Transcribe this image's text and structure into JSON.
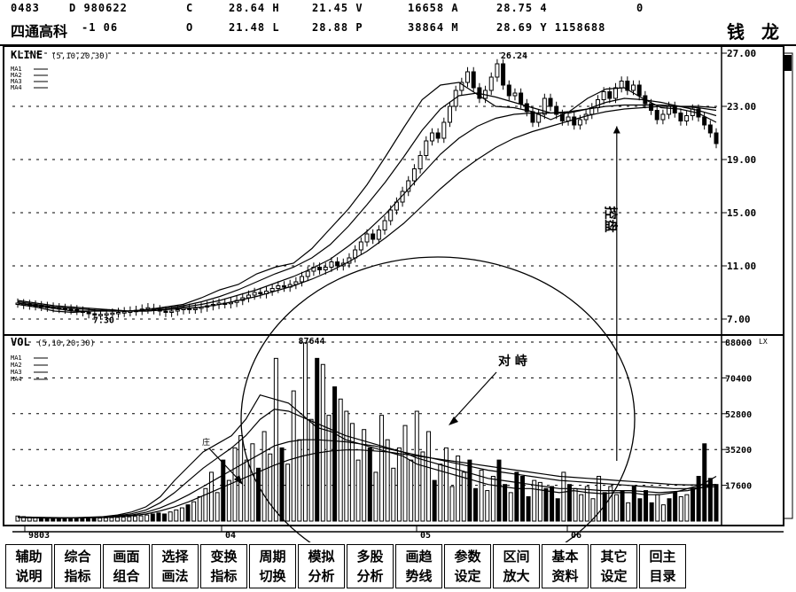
{
  "header": {
    "code": "0483",
    "name": "四通高科",
    "row1": [
      {
        "text": "D 980622",
        "x": 78
      },
      {
        "text": "C",
        "x": 210
      },
      {
        "text": "28.64 H",
        "x": 258
      },
      {
        "text": "21.45 V",
        "x": 352
      },
      {
        "text": "16658 A",
        "x": 460
      },
      {
        "text": "28.75 4",
        "x": 560
      },
      {
        "text": "0",
        "x": 718
      }
    ],
    "row2": [
      {
        "text": "-1 06",
        "x": 92
      },
      {
        "text": "O",
        "x": 210
      },
      {
        "text": "21.48 L",
        "x": 258
      },
      {
        "text": "28.88 P",
        "x": 352
      },
      {
        "text": "38864 M",
        "x": 460
      },
      {
        "text": "28.69 Y 1158688",
        "x": 560
      }
    ],
    "brand": "钱 龙"
  },
  "chart_data": [
    {
      "type": "candlestick",
      "title": "KLINE",
      "params": "(5,10,20,30)",
      "legend": [
        "MA1",
        "MA2",
        "MA3",
        "MA4"
      ],
      "ylim": [
        7.0,
        27.0
      ],
      "y_ticks": [
        "27.00",
        "23.00",
        "19.00",
        "15.00",
        "11.00",
        "7.00"
      ],
      "y_tick_values": [
        27,
        23,
        19,
        15,
        11,
        7
      ],
      "x_tick_labels": [
        "9803",
        "04",
        "05",
        "06"
      ],
      "annotations": [
        "26.24",
        "7.30",
        "控盘"
      ],
      "candles": [
        [
          8.2,
          8.2
        ],
        [
          8.1,
          8.15
        ],
        [
          8.05,
          8.1
        ],
        [
          8.0,
          8.05
        ],
        [
          8.0,
          7.95
        ],
        [
          7.95,
          7.9
        ],
        [
          7.9,
          7.85
        ],
        [
          7.85,
          7.8
        ],
        [
          7.8,
          7.75
        ],
        [
          7.75,
          7.7
        ],
        [
          7.7,
          7.65
        ],
        [
          7.6,
          7.55
        ],
        [
          7.5,
          7.4
        ],
        [
          7.4,
          7.3
        ],
        [
          7.3,
          7.35
        ],
        [
          7.35,
          7.4
        ],
        [
          7.4,
          7.45
        ],
        [
          7.45,
          7.5
        ],
        [
          7.5,
          7.55
        ],
        [
          7.55,
          7.6
        ],
        [
          7.6,
          7.65
        ],
        [
          7.65,
          7.75
        ],
        [
          7.75,
          7.85
        ],
        [
          7.8,
          7.7
        ],
        [
          7.7,
          7.6
        ],
        [
          7.6,
          7.5
        ],
        [
          7.5,
          7.6
        ],
        [
          7.6,
          7.7
        ],
        [
          7.7,
          7.8
        ],
        [
          7.8,
          7.75
        ],
        [
          7.75,
          7.8
        ],
        [
          7.8,
          7.9
        ],
        [
          7.9,
          8.0
        ],
        [
          8.0,
          8.1
        ],
        [
          8.1,
          8.2
        ],
        [
          8.2,
          8.15
        ],
        [
          8.15,
          8.25
        ],
        [
          8.25,
          8.4
        ],
        [
          8.4,
          8.6
        ],
        [
          8.6,
          8.8
        ],
        [
          8.8,
          9.0
        ],
        [
          9.0,
          8.9
        ],
        [
          8.9,
          9.1
        ],
        [
          9.1,
          9.3
        ],
        [
          9.3,
          9.5
        ],
        [
          9.5,
          9.4
        ],
        [
          9.4,
          9.6
        ],
        [
          9.6,
          9.8
        ],
        [
          9.8,
          10.2
        ],
        [
          10.2,
          10.6
        ],
        [
          10.6,
          10.9
        ],
        [
          10.9,
          10.7
        ],
        [
          10.7,
          10.9
        ],
        [
          10.9,
          11.3
        ],
        [
          11.3,
          11.0
        ],
        [
          11.0,
          11.2
        ],
        [
          11.2,
          11.6
        ],
        [
          11.6,
          12.2
        ],
        [
          12.2,
          12.8
        ],
        [
          12.8,
          13.4
        ],
        [
          13.4,
          13.0
        ],
        [
          13.0,
          13.7
        ],
        [
          13.7,
          14.4
        ],
        [
          14.4,
          15.2
        ],
        [
          15.2,
          15.8
        ],
        [
          15.8,
          16.6
        ],
        [
          16.6,
          17.4
        ],
        [
          17.4,
          18.3
        ],
        [
          18.3,
          19.3
        ],
        [
          19.3,
          20.4
        ],
        [
          20.4,
          21.0
        ],
        [
          21.0,
          20.6
        ],
        [
          20.6,
          21.8
        ],
        [
          21.8,
          23.0
        ],
        [
          23.0,
          24.2
        ],
        [
          24.2,
          24.8
        ],
        [
          24.8,
          25.6
        ],
        [
          25.6,
          24.4
        ],
        [
          24.4,
          23.6
        ],
        [
          23.6,
          24.2
        ],
        [
          24.2,
          25.2
        ],
        [
          25.2,
          26.2
        ],
        [
          26.2,
          24.6
        ],
        [
          24.6,
          23.8
        ],
        [
          23.8,
          24.0
        ],
        [
          24.0,
          23.2
        ],
        [
          23.2,
          22.6
        ],
        [
          22.6,
          21.8
        ],
        [
          21.8,
          22.4
        ],
        [
          22.4,
          23.6
        ],
        [
          23.6,
          23.0
        ],
        [
          23.0,
          22.4
        ],
        [
          22.4,
          21.9
        ],
        [
          21.9,
          22.2
        ],
        [
          22.2,
          21.6
        ],
        [
          21.6,
          22.0
        ],
        [
          22.0,
          22.4
        ],
        [
          22.4,
          22.9
        ],
        [
          22.9,
          23.5
        ],
        [
          23.5,
          24.1
        ],
        [
          24.1,
          23.6
        ],
        [
          23.6,
          24.4
        ],
        [
          24.4,
          24.9
        ],
        [
          24.9,
          24.2
        ],
        [
          24.2,
          24.6
        ],
        [
          24.6,
          23.8
        ],
        [
          23.8,
          23.2
        ],
        [
          23.2,
          22.7
        ],
        [
          22.7,
          22.0
        ],
        [
          22.0,
          22.4
        ],
        [
          22.4,
          23.0
        ],
        [
          23.0,
          22.5
        ],
        [
          22.5,
          21.9
        ],
        [
          21.9,
          22.3
        ],
        [
          22.3,
          22.8
        ],
        [
          22.8,
          22.2
        ],
        [
          22.2,
          21.6
        ],
        [
          21.6,
          21.0
        ],
        [
          21.0,
          20.2
        ]
      ],
      "ma_series": [
        {
          "name": "MA1",
          "values": [
            8.1,
            7.9,
            7.6,
            7.5,
            7.6,
            7.7,
            7.6,
            7.7,
            7.9,
            8.1,
            8.6,
            9.2,
            9.6,
            10.4,
            10.9,
            11.2,
            12.3,
            13.8,
            15.3,
            17.1,
            19.2,
            21.4,
            23.5,
            24.6,
            24.8,
            23.9,
            23.0,
            22.9,
            22.6,
            22.0,
            22.6,
            23.6,
            24.3,
            24.4,
            23.6,
            22.9,
            22.8,
            22.5,
            21.8
          ]
        },
        {
          "name": "MA2",
          "values": [
            8.2,
            8.0,
            7.8,
            7.6,
            7.6,
            7.6,
            7.6,
            7.7,
            7.8,
            8.0,
            8.3,
            8.7,
            9.2,
            9.8,
            10.4,
            10.9,
            11.6,
            12.6,
            14.0,
            15.6,
            17.3,
            19.2,
            21.2,
            22.8,
            23.8,
            24.0,
            23.7,
            23.3,
            22.9,
            22.5,
            22.5,
            22.8,
            23.3,
            23.6,
            23.5,
            23.3,
            23.0,
            22.7,
            22.3
          ]
        },
        {
          "name": "MA3",
          "values": [
            8.3,
            8.1,
            7.9,
            7.8,
            7.7,
            7.6,
            7.6,
            7.6,
            7.7,
            7.9,
            8.1,
            8.4,
            8.8,
            9.2,
            9.7,
            10.2,
            10.8,
            11.5,
            12.5,
            13.6,
            14.9,
            16.4,
            17.9,
            19.4,
            20.6,
            21.5,
            22.1,
            22.4,
            22.5,
            22.5,
            22.6,
            22.8,
            23.0,
            23.1,
            23.1,
            23.1,
            23.0,
            22.9,
            22.7
          ]
        },
        {
          "name": "MA4",
          "values": [
            8.4,
            8.2,
            8.0,
            7.9,
            7.8,
            7.7,
            7.6,
            7.6,
            7.7,
            7.8,
            7.9,
            8.1,
            8.4,
            8.7,
            9.1,
            9.5,
            10.0,
            10.6,
            11.3,
            12.1,
            13.1,
            14.2,
            15.5,
            16.8,
            18.0,
            19.0,
            19.9,
            20.6,
            21.1,
            21.5,
            21.9,
            22.3,
            22.6,
            22.8,
            22.9,
            23.0,
            23.0,
            23.0,
            22.9
          ]
        }
      ]
    },
    {
      "type": "bar",
      "title": "VOL",
      "params": "(5,10,20,30)",
      "legend": [
        "MA1",
        "MA2",
        "MA3",
        "MA4"
      ],
      "ylim": [
        0,
        88000
      ],
      "y_ticks": [
        "88000",
        "70400",
        "52800",
        "35200",
        "17600"
      ],
      "y_tick_values": [
        88000,
        70400,
        52800,
        35200,
        17600
      ],
      "unit_label": "LX",
      "annotations": [
        "87644",
        "对 峙",
        "庄"
      ],
      "values": [
        2500,
        2200,
        2000,
        1800,
        1700,
        1700,
        1600,
        1500,
        1500,
        1400,
        1400,
        1300,
        1300,
        1400,
        1500,
        1600,
        1700,
        1800,
        1900,
        2100,
        2300,
        2600,
        3000,
        3500,
        4000,
        3500,
        4500,
        5500,
        6500,
        8000,
        9500,
        12000,
        16000,
        24000,
        14000,
        30000,
        20000,
        36000,
        42000,
        30000,
        38000,
        26000,
        44000,
        33000,
        80000,
        36000,
        28000,
        64000,
        40000,
        87644,
        50000,
        80000,
        77000,
        52000,
        66000,
        60000,
        54000,
        48000,
        30000,
        45000,
        36000,
        24000,
        52000,
        40000,
        26000,
        36000,
        47000,
        30000,
        54000,
        34000,
        44000,
        20000,
        28000,
        36000,
        17000,
        32000,
        24000,
        30000,
        16000,
        25000,
        15000,
        22000,
        30000,
        18000,
        14000,
        24000,
        22000,
        12000,
        20000,
        19000,
        16000,
        17000,
        11000,
        24000,
        18000,
        16000,
        13000,
        17000,
        11000,
        22000,
        14000,
        17000,
        13000,
        15000,
        9000,
        17000,
        11000,
        15000,
        9000,
        13000,
        8000,
        11000,
        14000,
        12000,
        13000,
        16000,
        22000,
        38000,
        21000,
        18000
      ],
      "ma_series": [
        {
          "name": "MA1",
          "values": [
            1800,
            1600,
            1500,
            1500,
            1700,
            1900,
            2200,
            3000,
            4500,
            7000,
            12000,
            20000,
            27000,
            34000,
            38000,
            42000,
            50000,
            62000,
            60000,
            58000,
            52000,
            46000,
            44000,
            40000,
            38000,
            36000,
            34000,
            32000,
            28000,
            26000,
            24000,
            22000,
            20000,
            18000,
            17000,
            16000,
            16000,
            15000,
            14000,
            15000,
            14000,
            13500,
            14000,
            14000,
            13000,
            13000,
            14000,
            16000,
            18000,
            22000
          ]
        },
        {
          "name": "MA2",
          "values": [
            1900,
            1700,
            1600,
            1500,
            1600,
            1800,
            2000,
            2600,
            3600,
            5500,
            9000,
            14000,
            20000,
            26000,
            31000,
            36000,
            42000,
            50000,
            55000,
            54000,
            51000,
            48000,
            45000,
            42000,
            40000,
            38000,
            36000,
            34000,
            31000,
            29000,
            27000,
            25000,
            23000,
            21000,
            20000,
            19000,
            18000,
            17000,
            16000,
            16000,
            15500,
            15000,
            15000,
            15000,
            14500,
            14000,
            14500,
            15000,
            16500,
            18000
          ]
        },
        {
          "name": "MA3",
          "values": [
            2000,
            1800,
            1700,
            1600,
            1600,
            1700,
            1900,
            2300,
            3000,
            4300,
            6500,
            9500,
            13000,
            17000,
            21000,
            25000,
            29000,
            33000,
            37000,
            39000,
            40000,
            40000,
            39500,
            39000,
            38000,
            37000,
            35500,
            34000,
            32500,
            31000,
            29500,
            28000,
            26500,
            25000,
            24000,
            23000,
            22000,
            21000,
            20000,
            19500,
            19000,
            18500,
            18000,
            17500,
            17000,
            16500,
            16000,
            16000,
            16500,
            17000
          ]
        },
        {
          "name": "MA4",
          "values": [
            2100,
            1900,
            1800,
            1700,
            1650,
            1700,
            1800,
            2100,
            2600,
            3500,
            5000,
            7000,
            9500,
            12500,
            15500,
            18500,
            21500,
            24500,
            27500,
            30000,
            32000,
            33500,
            34500,
            35000,
            35000,
            34500,
            34000,
            33000,
            32000,
            31000,
            30000,
            29000,
            28000,
            27000,
            26000,
            25000,
            24000,
            23000,
            22000,
            21500,
            21000,
            20500,
            20000,
            19500,
            19000,
            18500,
            18000,
            17800,
            17800,
            18000
          ]
        }
      ]
    }
  ],
  "footer": {
    "buttons": [
      [
        "辅助",
        "说明"
      ],
      [
        "综合",
        "指标"
      ],
      [
        "画面",
        "组合"
      ],
      [
        "选择",
        "画法"
      ],
      [
        "变换",
        "指标"
      ],
      [
        "周期",
        "切换"
      ],
      [
        "模拟",
        "分析"
      ],
      [
        "多股",
        "分析"
      ],
      [
        "画趋",
        "势线"
      ],
      [
        "参数",
        "设定"
      ],
      [
        "区间",
        "放大"
      ],
      [
        "基本",
        "资料"
      ],
      [
        "其它",
        "设定"
      ],
      [
        "回主",
        "目录"
      ]
    ]
  }
}
